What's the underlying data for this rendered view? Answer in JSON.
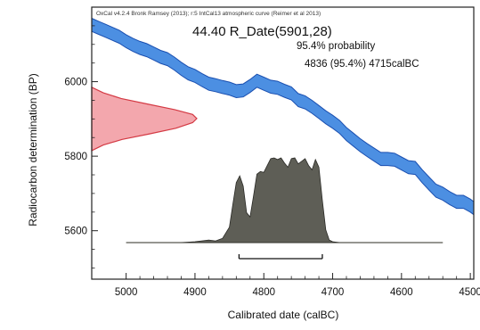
{
  "chart_data": {
    "type": "area",
    "credit": "OxCal v4.2.4 Bronk Ramsey (2013); r:5 IntCal13 atmospheric curve (Reimer et al 2013)",
    "title": "44.40 R_Date(5901,28)",
    "probability_label": "95.4% probability",
    "range_label": "4836 (95.4%) 4715calBC",
    "xlabel": "Calibrated date (calBC)",
    "ylabel": "Radiocarbon determination (BP)",
    "xlim": [
      5050,
      4495
    ],
    "ylim": [
      5470,
      6200
    ],
    "x_ticks": [
      5000,
      4900,
      4800,
      4700,
      4600,
      4500
    ],
    "y_ticks": [
      5600,
      5800,
      6000
    ],
    "grid": false,
    "colors": {
      "calibration_curve_fill": "#3d86e0",
      "calibration_curve_stroke": "#1a4fb0",
      "radiocarbon_fill": "#f3a7ad",
      "radiocarbon_stroke": "#d43a44",
      "posterior_fill": "#5e5e56",
      "posterior_stroke": "#2a2a26",
      "axis": "#222222"
    },
    "calibration_curve": {
      "x": [
        5050,
        5040,
        5030,
        5020,
        5010,
        5000,
        4990,
        4980,
        4970,
        4960,
        4950,
        4940,
        4930,
        4920,
        4910,
        4900,
        4890,
        4880,
        4870,
        4860,
        4850,
        4840,
        4830,
        4820,
        4810,
        4800,
        4790,
        4780,
        4770,
        4760,
        4750,
        4740,
        4730,
        4720,
        4710,
        4700,
        4690,
        4680,
        4670,
        4660,
        4650,
        4640,
        4630,
        4620,
        4610,
        4600,
        4590,
        4580,
        4570,
        4560,
        4550,
        4540,
        4530,
        4520,
        4510,
        4500,
        4495
      ],
      "upper": [
        6170,
        6162,
        6154,
        6146,
        6138,
        6126,
        6116,
        6108,
        6102,
        6093,
        6084,
        6078,
        6066,
        6052,
        6040,
        6033,
        6022,
        6012,
        6008,
        6003,
        5999,
        5992,
        5994,
        6006,
        6020,
        6012,
        6004,
        6001,
        5993,
        5986,
        5968,
        5962,
        5950,
        5936,
        5922,
        5910,
        5896,
        5877,
        5862,
        5847,
        5834,
        5822,
        5810,
        5810,
        5808,
        5798,
        5788,
        5786,
        5764,
        5744,
        5725,
        5717,
        5705,
        5695,
        5695,
        5685,
        5678
      ],
      "lower": [
        6135,
        6127,
        6119,
        6111,
        6103,
        6091,
        6081,
        6073,
        6067,
        6058,
        6049,
        6043,
        6031,
        6017,
        6005,
        5998,
        5987,
        5977,
        5973,
        5968,
        5964,
        5957,
        5959,
        5971,
        5985,
        5977,
        5969,
        5966,
        5958,
        5951,
        5933,
        5927,
        5915,
        5901,
        5887,
        5875,
        5861,
        5842,
        5827,
        5812,
        5799,
        5787,
        5775,
        5775,
        5773,
        5763,
        5753,
        5751,
        5729,
        5709,
        5690,
        5682,
        5670,
        5660,
        5660,
        5650,
        5643
      ]
    },
    "radiocarbon_distribution": {
      "bp": [
        5815,
        5830,
        5845,
        5860,
        5875,
        5890,
        5901,
        5912,
        5925,
        5940,
        5955,
        5970,
        5985
      ],
      "density": [
        0.0,
        0.11,
        0.29,
        0.55,
        0.8,
        0.96,
        1.0,
        0.96,
        0.79,
        0.53,
        0.28,
        0.11,
        0.0
      ]
    },
    "posterior_distribution": {
      "x": [
        5000,
        4920,
        4900,
        4880,
        4870,
        4860,
        4850,
        4845,
        4840,
        4835,
        4830,
        4825,
        4820,
        4815,
        4810,
        4805,
        4800,
        4795,
        4790,
        4785,
        4780,
        4775,
        4770,
        4765,
        4760,
        4755,
        4750,
        4745,
        4740,
        4735,
        4730,
        4725,
        4720,
        4715,
        4710,
        4705,
        4700,
        4690,
        4650,
        4540
      ],
      "density": [
        0.0,
        0.0,
        0.01,
        0.03,
        0.02,
        0.05,
        0.18,
        0.45,
        0.7,
        0.78,
        0.66,
        0.35,
        0.3,
        0.54,
        0.8,
        0.83,
        0.82,
        0.9,
        0.98,
        0.99,
        0.97,
        0.99,
        0.93,
        0.88,
        0.98,
        0.99,
        0.92,
        0.95,
        0.98,
        0.9,
        0.85,
        0.97,
        0.88,
        0.5,
        0.15,
        0.03,
        0.01,
        0.0,
        0.0,
        0.0
      ]
    },
    "range_bar": {
      "from": 4836,
      "to": 4715
    }
  }
}
